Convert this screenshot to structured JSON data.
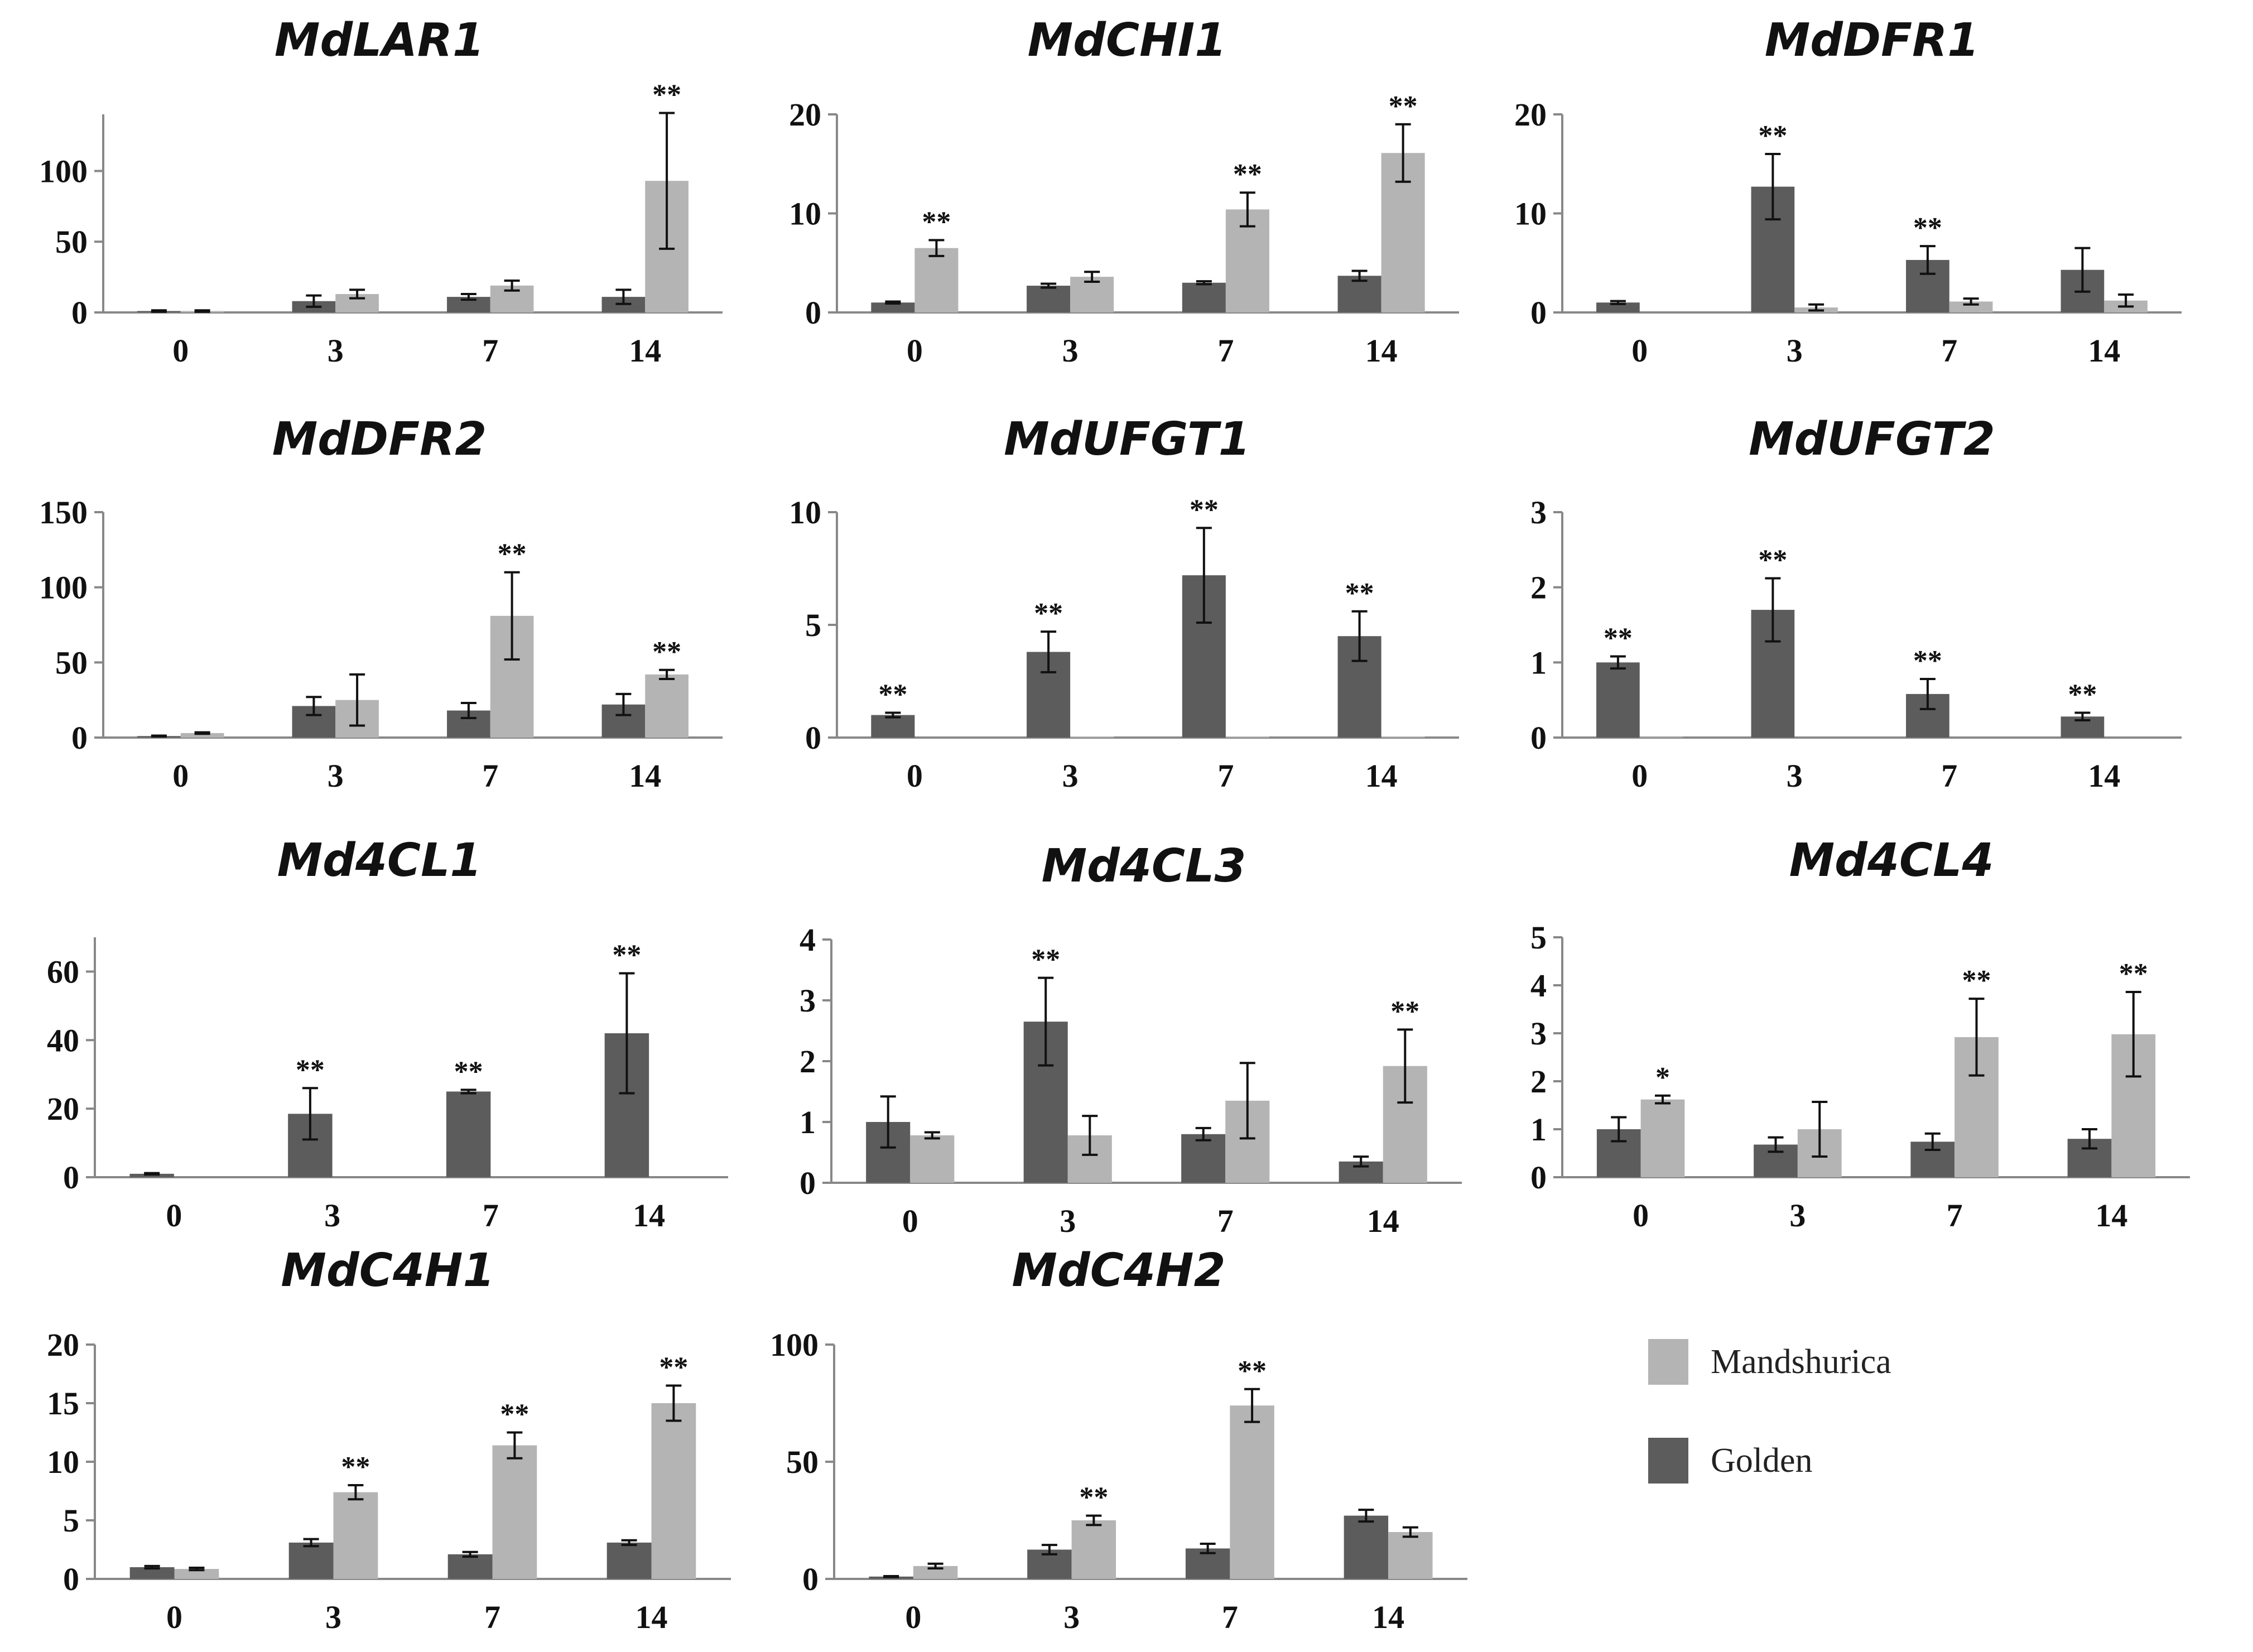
{
  "colors": {
    "Golden": "#5c5c5c",
    "Mandshurica": "#b4b4b4"
  },
  "legend": [
    {
      "name": "Mandshurica",
      "color": "#b4b4b4"
    },
    {
      "name": "Golden",
      "color": "#5c5c5c"
    }
  ],
  "chart_data": [
    {
      "type": "bar",
      "title": "MdLAR1",
      "categories": [
        "0",
        "3",
        "7",
        "14"
      ],
      "ylim": [
        0,
        140
      ],
      "yticks": [
        0,
        50,
        100
      ],
      "series": [
        {
          "name": "Golden",
          "values": [
            1,
            8,
            11,
            11
          ],
          "errors": [
            0.5,
            4,
            2,
            5
          ],
          "sig": [
            "",
            "",
            "",
            ""
          ]
        },
        {
          "name": "Mandshurica",
          "values": [
            1,
            13,
            19,
            93
          ],
          "errors": [
            0.5,
            3,
            3.5,
            48
          ],
          "sig": [
            "",
            "",
            "",
            "**"
          ]
        }
      ]
    },
    {
      "type": "bar",
      "title": "MdCHI1",
      "categories": [
        "0",
        "3",
        "7",
        "14"
      ],
      "ylim": [
        0,
        20
      ],
      "yticks": [
        0,
        10,
        20
      ],
      "series": [
        {
          "name": "Golden",
          "values": [
            1,
            2.7,
            3,
            3.7
          ],
          "errors": [
            0.1,
            0.2,
            0.15,
            0.5
          ],
          "sig": [
            "",
            "",
            "",
            ""
          ]
        },
        {
          "name": "Mandshurica",
          "values": [
            6.5,
            3.6,
            10.4,
            16.1
          ],
          "errors": [
            0.8,
            0.5,
            1.7,
            2.9
          ],
          "sig": [
            "**",
            "",
            "**",
            "**"
          ]
        }
      ]
    },
    {
      "type": "bar",
      "title": "MdDFR1",
      "categories": [
        "0",
        "3",
        "7",
        "14"
      ],
      "ylim": [
        0,
        20
      ],
      "yticks": [
        0,
        10,
        20
      ],
      "series": [
        {
          "name": "Golden",
          "values": [
            1,
            12.7,
            5.3,
            4.3
          ],
          "errors": [
            0.15,
            3.3,
            1.4,
            2.2
          ],
          "sig": [
            "",
            "**",
            "**",
            ""
          ]
        },
        {
          "name": "Mandshurica",
          "values": [
            0,
            0.5,
            1.1,
            1.2
          ],
          "errors": [
            0,
            0.3,
            0.3,
            0.6
          ],
          "sig": [
            "",
            "",
            "",
            ""
          ]
        }
      ]
    },
    {
      "type": "bar",
      "title": "MdDFR2",
      "categories": [
        "0",
        "3",
        "7",
        "14"
      ],
      "ylim": [
        0,
        150
      ],
      "yticks": [
        0,
        50,
        100,
        150
      ],
      "series": [
        {
          "name": "Golden",
          "values": [
            1,
            21,
            18,
            22
          ],
          "errors": [
            0.3,
            6,
            5,
            7
          ],
          "sig": [
            "",
            "",
            "",
            ""
          ]
        },
        {
          "name": "Mandshurica",
          "values": [
            3,
            25,
            81,
            42
          ],
          "errors": [
            0.5,
            17,
            29,
            3
          ],
          "sig": [
            "",
            "",
            "**",
            "**"
          ]
        }
      ]
    },
    {
      "type": "bar",
      "title": "MdUFGT1",
      "categories": [
        "0",
        "3",
        "7",
        "14"
      ],
      "ylim": [
        0,
        10
      ],
      "yticks": [
        0,
        5,
        10
      ],
      "series": [
        {
          "name": "Golden",
          "values": [
            1,
            3.8,
            7.2,
            4.5
          ],
          "errors": [
            0.1,
            0.9,
            2.1,
            1.1
          ],
          "sig": [
            "**",
            "**",
            "**",
            "**"
          ]
        },
        {
          "name": "Mandshurica",
          "values": [
            0,
            0.05,
            0.05,
            0.05
          ],
          "errors": [
            0,
            0,
            0,
            0
          ],
          "sig": [
            "",
            "",
            "",
            ""
          ]
        }
      ]
    },
    {
      "type": "bar",
      "title": "MdUFGT2",
      "categories": [
        "0",
        "3",
        "7",
        "14"
      ],
      "ylim": [
        0,
        3
      ],
      "yticks": [
        0,
        1,
        2,
        3
      ],
      "series": [
        {
          "name": "Golden",
          "values": [
            1,
            1.7,
            0.58,
            0.28
          ],
          "errors": [
            0.08,
            0.42,
            0.2,
            0.05
          ],
          "sig": [
            "**",
            "**",
            "**",
            "**"
          ]
        },
        {
          "name": "Mandshurica",
          "values": [
            0.01,
            0,
            0,
            0
          ],
          "errors": [
            0,
            0,
            0,
            0
          ],
          "sig": [
            "",
            "",
            "",
            ""
          ]
        }
      ]
    },
    {
      "type": "bar",
      "title": "Md4CL1",
      "categories": [
        "0",
        "3",
        "7",
        "14"
      ],
      "ylim": [
        0,
        70
      ],
      "yticks": [
        0,
        20,
        40,
        60
      ],
      "series": [
        {
          "name": "Golden",
          "values": [
            1,
            18.5,
            25,
            42
          ],
          "errors": [
            0.2,
            7.5,
            0.5,
            17.5
          ],
          "sig": [
            "",
            "**",
            "**",
            "**"
          ]
        },
        {
          "name": "Mandshurica",
          "values": [
            0,
            0,
            0,
            0
          ],
          "errors": [
            0,
            0,
            0,
            0
          ],
          "sig": [
            "",
            "",
            "",
            ""
          ]
        }
      ]
    },
    {
      "type": "bar",
      "title": "Md4CL3",
      "categories": [
        "0",
        "3",
        "7",
        "14"
      ],
      "ylim": [
        0,
        4
      ],
      "yticks": [
        0,
        1,
        2,
        3,
        4
      ],
      "series": [
        {
          "name": "Golden",
          "values": [
            1,
            2.65,
            0.8,
            0.35
          ],
          "errors": [
            0.42,
            0.72,
            0.1,
            0.08
          ],
          "sig": [
            "",
            "**",
            "",
            ""
          ]
        },
        {
          "name": "Mandshurica",
          "values": [
            0.78,
            0.78,
            1.35,
            1.92
          ],
          "errors": [
            0.05,
            0.32,
            0.62,
            0.6
          ],
          "sig": [
            "",
            "",
            "",
            "**"
          ]
        }
      ]
    },
    {
      "type": "bar",
      "title": "Md4CL4",
      "categories": [
        "0",
        "3",
        "7",
        "14"
      ],
      "ylim": [
        0,
        5
      ],
      "yticks": [
        0,
        1,
        2,
        3,
        4,
        5
      ],
      "series": [
        {
          "name": "Golden",
          "values": [
            1,
            0.68,
            0.74,
            0.8
          ],
          "errors": [
            0.25,
            0.15,
            0.17,
            0.2
          ],
          "sig": [
            "",
            "",
            "",
            ""
          ]
        },
        {
          "name": "Mandshurica",
          "values": [
            1.62,
            1,
            2.92,
            2.98
          ],
          "errors": [
            0.08,
            0.57,
            0.8,
            0.88
          ],
          "sig": [
            "*",
            "",
            "**",
            "**"
          ]
        }
      ]
    },
    {
      "type": "bar",
      "title": "MdC4H1",
      "categories": [
        "0",
        "3",
        "7",
        "14"
      ],
      "ylim": [
        0,
        20
      ],
      "yticks": [
        0,
        5,
        10,
        15,
        20
      ],
      "series": [
        {
          "name": "Golden",
          "values": [
            1,
            3.1,
            2.1,
            3.1
          ],
          "errors": [
            0.1,
            0.3,
            0.2,
            0.2
          ],
          "sig": [
            "",
            "",
            "",
            ""
          ]
        },
        {
          "name": "Mandshurica",
          "values": [
            0.85,
            7.4,
            11.4,
            15
          ],
          "errors": [
            0.1,
            0.6,
            1.1,
            1.5
          ],
          "sig": [
            "",
            "**",
            "**",
            "**"
          ]
        }
      ]
    },
    {
      "type": "bar",
      "title": "MdC4H2",
      "categories": [
        "0",
        "3",
        "7",
        "14"
      ],
      "ylim": [
        0,
        100
      ],
      "yticks": [
        0,
        50,
        100
      ],
      "series": [
        {
          "name": "Golden",
          "values": [
            1,
            12.5,
            13,
            27
          ],
          "errors": [
            0.2,
            2,
            2,
            2.5
          ],
          "sig": [
            "",
            "",
            "",
            ""
          ]
        },
        {
          "name": "Mandshurica",
          "values": [
            5.5,
            25,
            74,
            20
          ],
          "errors": [
            1,
            2,
            7,
            2
          ],
          "sig": [
            "",
            "**",
            "**",
            ""
          ]
        }
      ]
    }
  ]
}
